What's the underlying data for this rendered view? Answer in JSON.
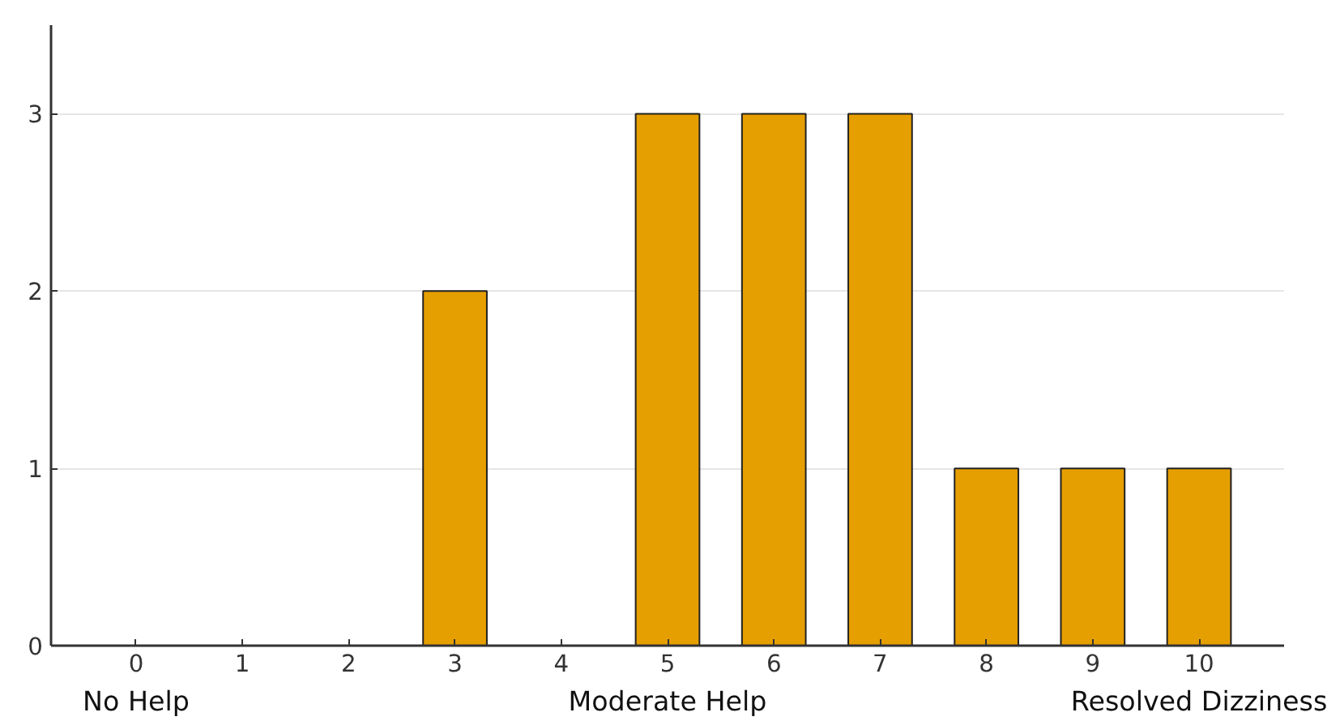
{
  "chart_data": {
    "type": "bar",
    "categories": [
      "0",
      "1",
      "2",
      "3",
      "4",
      "5",
      "6",
      "7",
      "8",
      "9",
      "10"
    ],
    "values": [
      0,
      0,
      0,
      2,
      0,
      3,
      3,
      3,
      1,
      1,
      1
    ],
    "color": "#e69f00",
    "ylim": [
      0,
      3.5
    ],
    "yticks": [
      0,
      1,
      2,
      3
    ],
    "grid": "y",
    "annotations": [
      "No Help",
      "Moderate Help",
      "Resolved Dizziness"
    ]
  }
}
